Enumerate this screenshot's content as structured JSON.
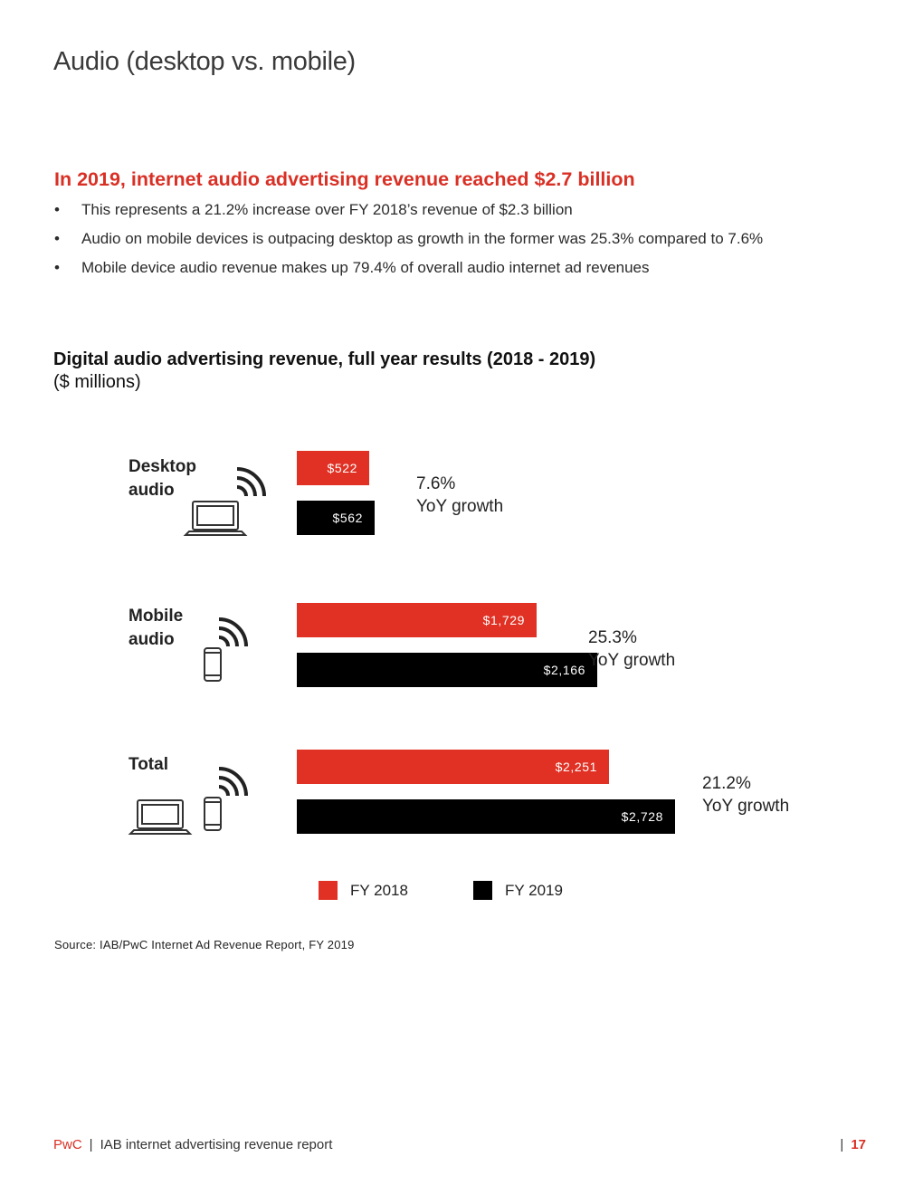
{
  "page": {
    "title": "Audio (desktop vs. mobile)",
    "headline": "In 2019, internet audio advertising revenue reached $2.7 billion",
    "bullets": [
      "This represents a 21.2% increase over FY 2018’s revenue of $2.3 billion",
      "Audio on mobile devices is outpacing desktop as growth in the former was 25.3% compared to 7.6%",
      "Mobile device audio revenue makes up 79.4% of overall audio internet ad revenues"
    ]
  },
  "chart_data": {
    "type": "bar",
    "orientation": "horizontal",
    "title": "Digital audio advertising revenue, full year results (2018 - 2019)",
    "subtitle": "($ millions)",
    "categories": [
      "Desktop audio",
      "Mobile audio",
      "Total"
    ],
    "category_icons": [
      [
        "laptop-icon",
        "signal-icon"
      ],
      [
        "phone-icon",
        "signal-icon"
      ],
      [
        "laptop-icon",
        "phone-icon",
        "signal-icon"
      ]
    ],
    "series": [
      {
        "name": "FY 2018",
        "color": "#e03124",
        "values": [
          522,
          1729,
          2251
        ],
        "labels": [
          "$522",
          "$1,729",
          "$2,251"
        ]
      },
      {
        "name": "FY 2019",
        "color": "#000000",
        "values": [
          562,
          2166,
          2728
        ],
        "labels": [
          "$562",
          "$2,166",
          "$2,728"
        ]
      }
    ],
    "growth": [
      {
        "value": "7.6%",
        "label": "YoY growth"
      },
      {
        "value": "25.3%",
        "label": "YoY growth"
      },
      {
        "value": "21.2%",
        "label": "YoY growth"
      }
    ],
    "legend": [
      "FY 2018",
      "FY 2019"
    ],
    "legend_position": "bottom",
    "grid": false
  },
  "source": "Source: IAB/PwC Internet Ad Revenue Report, FY 2019",
  "footer": {
    "brand": "PwC",
    "separator": "|",
    "report": "IAB internet advertising revenue report",
    "page_number": "17"
  }
}
